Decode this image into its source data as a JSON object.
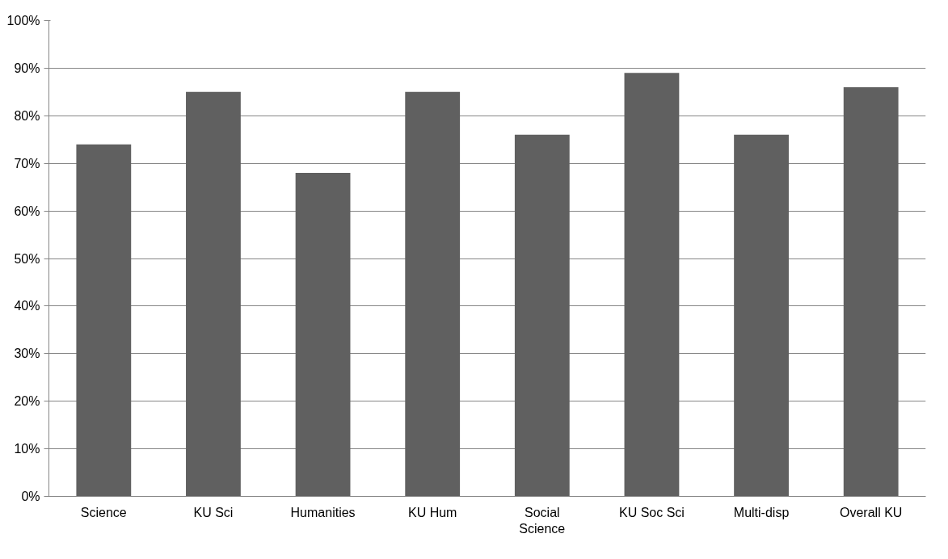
{
  "chart_data": {
    "type": "bar",
    "categories": [
      "Science",
      "KU Sci",
      "Humanities",
      "KU Hum",
      "Social Science",
      "KU Soc Sci",
      "Multi-disp",
      "Overall KU"
    ],
    "values": [
      74,
      85,
      68,
      85,
      76,
      89,
      76,
      86
    ],
    "color": "#606060",
    "ylim": [
      0,
      100
    ],
    "yticks": [
      {
        "value": 0,
        "label": "0%"
      },
      {
        "value": 10,
        "label": "10%"
      },
      {
        "value": 20,
        "label": "20%"
      },
      {
        "value": 30,
        "label": "30%"
      },
      {
        "value": 40,
        "label": "40%"
      },
      {
        "value": 50,
        "label": "50%"
      },
      {
        "value": 60,
        "label": "60%"
      },
      {
        "value": 70,
        "label": "70%"
      },
      {
        "value": 80,
        "label": "80%"
      },
      {
        "value": 90,
        "label": "90%"
      },
      {
        "value": 100,
        "label": "100%"
      }
    ],
    "grid": "y"
  }
}
